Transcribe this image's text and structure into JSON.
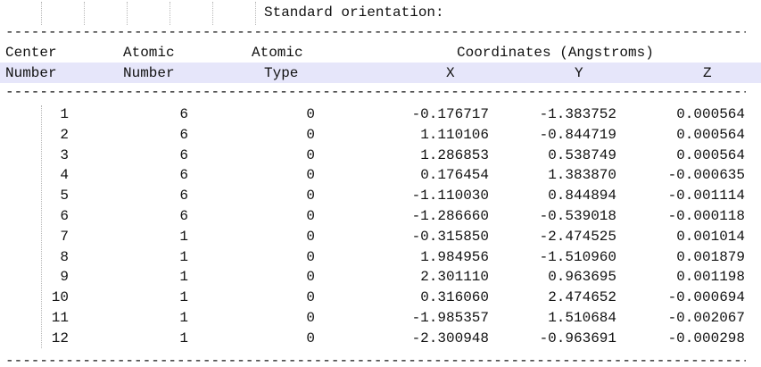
{
  "title": "Standard orientation:",
  "dash_line": "--------------------------------------------------------------------------------------------------------------------------------------------------------------------------------",
  "header": {
    "row1": {
      "center": "Center",
      "atomic_number": "Atomic",
      "atomic_type": "Atomic",
      "coordinates": "Coordinates (Angstroms)"
    },
    "row2": {
      "center": "Number",
      "atomic_number": "Number",
      "atomic_type": "Type",
      "x": "X",
      "y": "Y",
      "z": "Z"
    }
  },
  "colors": {
    "header_highlight": "#e6e6fa",
    "text": "#111111",
    "background": "#ffffff"
  },
  "atoms": [
    {
      "center": "1",
      "atomic_number": "6",
      "atomic_type": "0",
      "x": "-0.176717",
      "y": "-1.383752",
      "z": "0.000564"
    },
    {
      "center": "2",
      "atomic_number": "6",
      "atomic_type": "0",
      "x": "1.110106",
      "y": "-0.844719",
      "z": "0.000564"
    },
    {
      "center": "3",
      "atomic_number": "6",
      "atomic_type": "0",
      "x": "1.286853",
      "y": "0.538749",
      "z": "0.000564"
    },
    {
      "center": "4",
      "atomic_number": "6",
      "atomic_type": "0",
      "x": "0.176454",
      "y": "1.383870",
      "z": "-0.000635"
    },
    {
      "center": "5",
      "atomic_number": "6",
      "atomic_type": "0",
      "x": "-1.110030",
      "y": "0.844894",
      "z": "-0.001114"
    },
    {
      "center": "6",
      "atomic_number": "6",
      "atomic_type": "0",
      "x": "-1.286660",
      "y": "-0.539018",
      "z": "-0.000118"
    },
    {
      "center": "7",
      "atomic_number": "1",
      "atomic_type": "0",
      "x": "-0.315850",
      "y": "-2.474525",
      "z": "0.001014"
    },
    {
      "center": "8",
      "atomic_number": "1",
      "atomic_type": "0",
      "x": "1.984956",
      "y": "-1.510960",
      "z": "0.001879"
    },
    {
      "center": "9",
      "atomic_number": "1",
      "atomic_type": "0",
      "x": "2.301110",
      "y": "0.963695",
      "z": "0.001198"
    },
    {
      "center": "10",
      "atomic_number": "1",
      "atomic_type": "0",
      "x": "0.316060",
      "y": "2.474652",
      "z": "-0.000694"
    },
    {
      "center": "11",
      "atomic_number": "1",
      "atomic_type": "0",
      "x": "-1.985357",
      "y": "1.510684",
      "z": "-0.002067"
    },
    {
      "center": "12",
      "atomic_number": "1",
      "atomic_type": "0",
      "x": "-2.300948",
      "y": "-0.963691",
      "z": "-0.000298"
    }
  ]
}
